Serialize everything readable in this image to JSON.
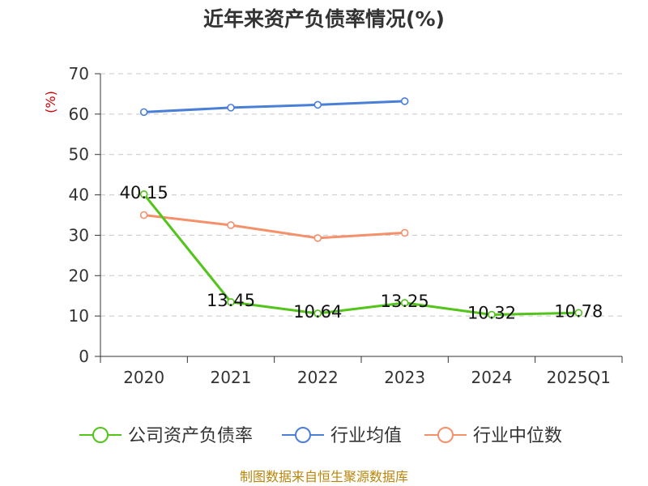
{
  "chart_data": {
    "type": "line",
    "title": "近年来资产负债率情况(%)",
    "ylabel": "(%)",
    "xlabel": "",
    "categories": [
      "2020",
      "2021",
      "2022",
      "2023",
      "2024",
      "2025Q1"
    ],
    "ylim": [
      0,
      70
    ],
    "yticks": [
      0,
      10,
      20,
      30,
      40,
      50,
      60,
      70
    ],
    "grid": true,
    "legend_position": "bottom",
    "series": [
      {
        "name": "公司资产负债率",
        "color": "#52c41a",
        "values": [
          40.15,
          13.45,
          10.64,
          13.25,
          10.32,
          10.78
        ],
        "labels": [
          "40.15",
          "13.45",
          "10.64",
          "13.25",
          "10.32",
          "10.78"
        ]
      },
      {
        "name": "行业均值",
        "color": "#4a7fd8",
        "values": [
          60.5,
          61.6,
          62.3,
          63.2,
          null,
          null
        ]
      },
      {
        "name": "行业中位数",
        "color": "#f4906a",
        "values": [
          35.0,
          32.5,
          29.3,
          30.6,
          null,
          null
        ]
      }
    ]
  },
  "source": "制图数据来自恒生聚源数据库"
}
